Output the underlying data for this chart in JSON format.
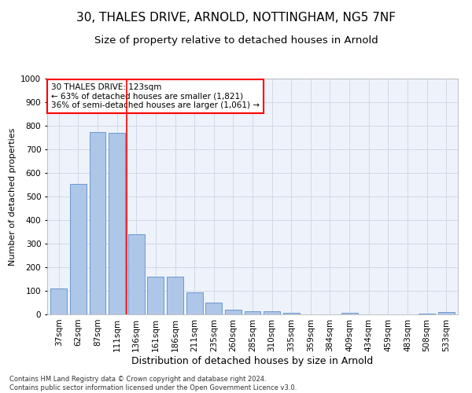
{
  "title1": "30, THALES DRIVE, ARNOLD, NOTTINGHAM, NG5 7NF",
  "title2": "Size of property relative to detached houses in Arnold",
  "xlabel": "Distribution of detached houses by size in Arnold",
  "ylabel": "Number of detached properties",
  "footer1": "Contains HM Land Registry data © Crown copyright and database right 2024.",
  "footer2": "Contains public sector information licensed under the Open Government Licence v3.0.",
  "annotation_title": "30 THALES DRIVE: 123sqm",
  "annotation_line1": "← 63% of detached houses are smaller (1,821)",
  "annotation_line2": "36% of semi-detached houses are larger (1,061) →",
  "categories": [
    "37sqm",
    "62sqm",
    "87sqm",
    "111sqm",
    "136sqm",
    "161sqm",
    "186sqm",
    "211sqm",
    "235sqm",
    "260sqm",
    "285sqm",
    "310sqm",
    "335sqm",
    "359sqm",
    "384sqm",
    "409sqm",
    "434sqm",
    "459sqm",
    "483sqm",
    "508sqm",
    "533sqm"
  ],
  "values": [
    110,
    555,
    775,
    770,
    340,
    160,
    160,
    95,
    50,
    20,
    12,
    12,
    8,
    0,
    0,
    8,
    0,
    0,
    0,
    5,
    10
  ],
  "bar_color": "#aec6e8",
  "bar_edge_color": "#5b8fc9",
  "vline_x": 3.5,
  "vline_color": "red",
  "annotation_box_color": "white",
  "annotation_box_edge": "red",
  "ylim": [
    0,
    1000
  ],
  "yticks": [
    0,
    100,
    200,
    300,
    400,
    500,
    600,
    700,
    800,
    900,
    1000
  ],
  "grid_color": "#d0d8e8",
  "bg_color": "#eef2fa",
  "title1_fontsize": 11,
  "title2_fontsize": 9.5,
  "xlabel_fontsize": 9,
  "ylabel_fontsize": 8,
  "tick_fontsize": 7.5,
  "annotation_fontsize": 7.5,
  "footer_fontsize": 6
}
